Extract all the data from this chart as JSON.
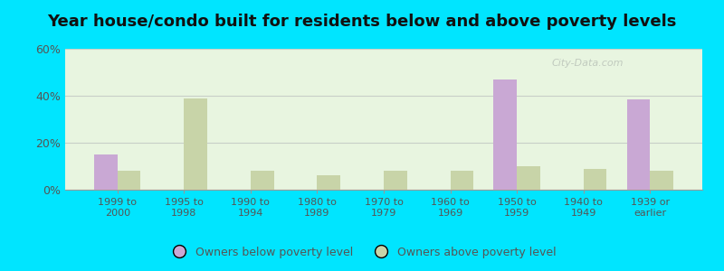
{
  "title": "Year house/condo built for residents below and above poverty levels",
  "categories": [
    "1999 to\n2000",
    "1995 to\n1998",
    "1990 to\n1994",
    "1980 to\n1989",
    "1970 to\n1979",
    "1960 to\n1969",
    "1950 to\n1959",
    "1940 to\n1949",
    "1939 or\nearlier"
  ],
  "below_poverty": [
    15.0,
    0.0,
    0.0,
    0.0,
    0.0,
    0.0,
    47.0,
    0.0,
    38.5
  ],
  "above_poverty": [
    8.0,
    39.0,
    8.0,
    6.0,
    8.0,
    8.0,
    10.0,
    9.0,
    8.0
  ],
  "below_color": "#c9a8d4",
  "above_color": "#c8d4a8",
  "background_color": "#e8f5e0",
  "outer_background": "#00e5ff",
  "ylim": [
    0,
    60
  ],
  "yticks": [
    0,
    20,
    40,
    60
  ],
  "ytick_labels": [
    "0%",
    "20%",
    "40%",
    "60%"
  ],
  "grid_color": "#c8cfc8",
  "title_fontsize": 13,
  "legend_below_label": "Owners below poverty level",
  "legend_above_label": "Owners above poverty level",
  "watermark": "City-Data.com"
}
